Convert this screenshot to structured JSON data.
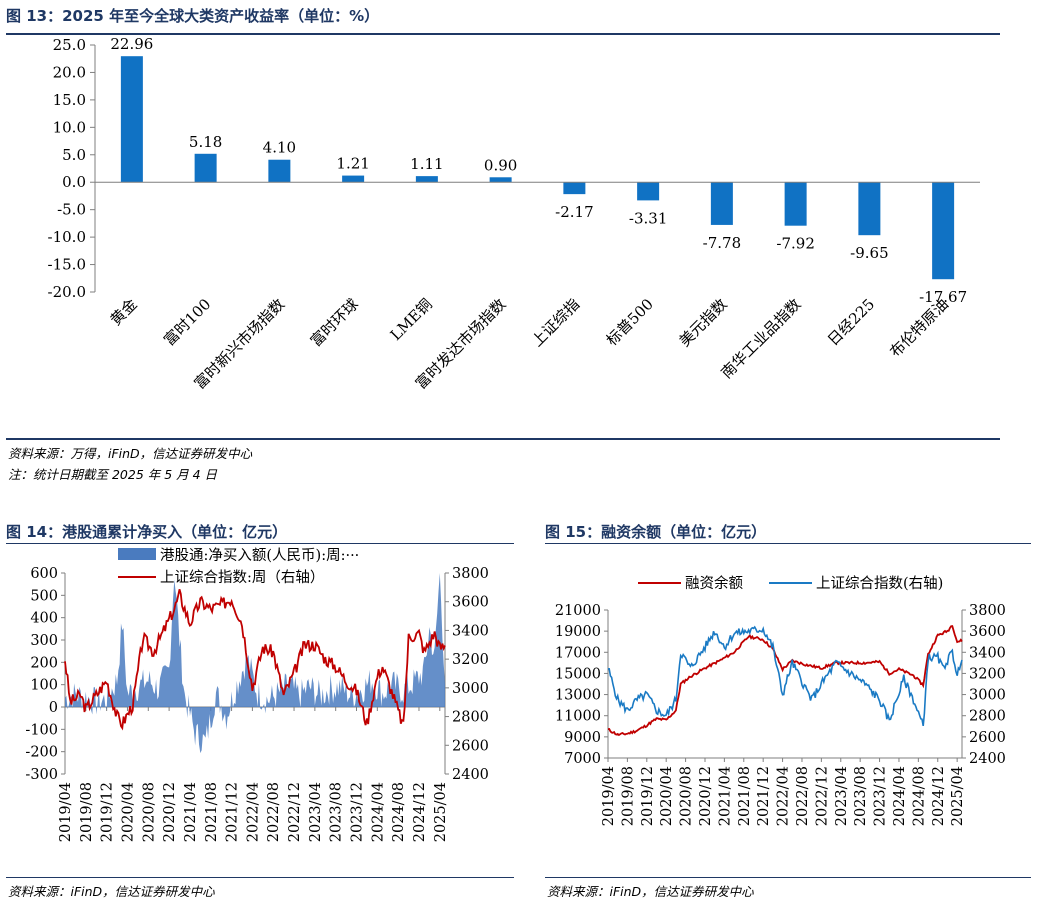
{
  "figures": [
    {
      "title": "图 13：2025 年至今全球大类资产收益率（单位：%）",
      "source": "资料来源：万得，iFinD，信达证券研发中心",
      "note": "注：统计日期截至 2025 年 5 月 4 日"
    },
    {
      "title": "图 14：港股通累计净买入（单位：亿元）",
      "source": "资料来源：iFinD，信达证券研发中心"
    },
    {
      "title": "图 15：融资余额（单位：亿元）",
      "source": "资料来源：iFinD，信达证券研发中心"
    }
  ],
  "chart_data": [
    {
      "type": "bar",
      "categories": [
        "黄金",
        "富时100",
        "富时新兴市场指数",
        "富时环球",
        "LME铜",
        "富时发达市场指数",
        "上证综指",
        "标普500",
        "美元指数",
        "南华工业品指数",
        "日经225",
        "布伦特原油"
      ],
      "values": [
        22.96,
        5.18,
        4.1,
        1.21,
        1.11,
        0.9,
        -2.17,
        -3.31,
        -7.78,
        -7.92,
        -9.65,
        -17.67
      ],
      "value_labels": [
        "22.96",
        "5.18",
        "4.10",
        "1.21",
        "1.11",
        "0.90",
        "-2.17",
        "-3.31",
        "-7.78",
        "-7.92",
        "-9.65",
        "-17.67"
      ],
      "ylim": [
        -20,
        25
      ],
      "yticks": [
        "-20.0",
        "-15.0",
        "-10.0",
        "-5.0",
        "0.0",
        "5.0",
        "10.0",
        "15.0",
        "20.0",
        "25.0"
      ],
      "color": "#1072c4",
      "grid": false
    },
    {
      "type": "area",
      "legend": [
        "港股通:净买入额(人民币):周:···",
        "上证综合指数:周（右轴）"
      ],
      "legend_placement": "top",
      "xticks": [
        "2019/04",
        "2019/08",
        "2019/12",
        "2020/04",
        "2020/08",
        "2020/12",
        "2021/04",
        "2021/08",
        "2021/12",
        "2022/04",
        "2022/08",
        "2022/12",
        "2023/04",
        "2023/08",
        "2023/12",
        "2024/04",
        "2024/08",
        "2024/12",
        "2025/04"
      ],
      "x_range": [
        "2019/04",
        "2025/05"
      ],
      "ylim_left": [
        -300,
        600
      ],
      "yticks_left": [
        "-300",
        "-200",
        "-100",
        "0",
        "100",
        "200",
        "300",
        "400",
        "500",
        "600"
      ],
      "ylim_right": [
        2400,
        3800
      ],
      "yticks_right": [
        "2400",
        "2600",
        "2800",
        "3000",
        "3200",
        "3400",
        "3600",
        "3800"
      ],
      "series": [
        {
          "name": "港股通:净买入额(人民币):周:···",
          "axis": "left",
          "color": "#4a7bbf",
          "anchors": [
            [
              "2019/04",
              40
            ],
            [
              "2019/06",
              55
            ],
            [
              "2019/08",
              45
            ],
            [
              "2019/10",
              20
            ],
            [
              "2019/12",
              35
            ],
            [
              "2020/02",
              120
            ],
            [
              "2020/03",
              380
            ],
            [
              "2020/04",
              60
            ],
            [
              "2020/06",
              90
            ],
            [
              "2020/08",
              120
            ],
            [
              "2020/10",
              80
            ],
            [
              "2020/12",
              170
            ],
            [
              "2021/01",
              610
            ],
            [
              "2021/02",
              300
            ],
            [
              "2021/03",
              50
            ],
            [
              "2021/05",
              -120
            ],
            [
              "2021/07",
              -160
            ],
            [
              "2021/09",
              60
            ],
            [
              "2021/11",
              -40
            ],
            [
              "2022/01",
              100
            ],
            [
              "2022/03",
              220
            ],
            [
              "2022/05",
              60
            ],
            [
              "2022/07",
              30
            ],
            [
              "2022/09",
              60
            ],
            [
              "2022/11",
              100
            ],
            [
              "2023/01",
              50
            ],
            [
              "2023/03",
              90
            ],
            [
              "2023/05",
              50
            ],
            [
              "2023/07",
              80
            ],
            [
              "2023/09",
              90
            ],
            [
              "2023/11",
              50
            ],
            [
              "2024/01",
              80
            ],
            [
              "2024/03",
              120
            ],
            [
              "2024/05",
              60
            ],
            [
              "2024/07",
              100
            ],
            [
              "2024/09",
              70
            ],
            [
              "2024/11",
              110
            ],
            [
              "2025/01",
              160
            ],
            [
              "2025/02",
              350
            ],
            [
              "2025/03",
              220
            ],
            [
              "2025/04",
              610
            ],
            [
              "2025/05",
              120
            ]
          ]
        },
        {
          "name": "上证综合指数:周（右轴）",
          "axis": "right",
          "color": "#c00000",
          "anchors": [
            [
              "2019/04",
              3200
            ],
            [
              "2019/05",
              2900
            ],
            [
              "2019/07",
              2950
            ],
            [
              "2019/08",
              2850
            ],
            [
              "2019/10",
              2950
            ],
            [
              "2019/12",
              3050
            ],
            [
              "2020/02",
              2800
            ],
            [
              "2020/03",
              2750
            ],
            [
              "2020/05",
              2880
            ],
            [
              "2020/07",
              3350
            ],
            [
              "2020/09",
              3250
            ],
            [
              "2020/11",
              3400
            ],
            [
              "2021/01",
              3550
            ],
            [
              "2021/02",
              3650
            ],
            [
              "2021/04",
              3450
            ],
            [
              "2021/06",
              3600
            ],
            [
              "2021/08",
              3550
            ],
            [
              "2021/10",
              3580
            ],
            [
              "2021/12",
              3620
            ],
            [
              "2022/02",
              3450
            ],
            [
              "2022/04",
              3000
            ],
            [
              "2022/06",
              3280
            ],
            [
              "2022/08",
              3250
            ],
            [
              "2022/10",
              2950
            ],
            [
              "2022/12",
              3100
            ],
            [
              "2023/02",
              3300
            ],
            [
              "2023/04",
              3300
            ],
            [
              "2023/06",
              3200
            ],
            [
              "2023/08",
              3150
            ],
            [
              "2023/10",
              3050
            ],
            [
              "2023/12",
              2980
            ],
            [
              "2024/02",
              2750
            ],
            [
              "2024/04",
              3080
            ],
            [
              "2024/05",
              3150
            ],
            [
              "2024/07",
              2950
            ],
            [
              "2024/09",
              2730
            ],
            [
              "2024/10",
              3350
            ],
            [
              "2024/12",
              3380
            ],
            [
              "2025/01",
              3250
            ],
            [
              "2025/03",
              3380
            ],
            [
              "2025/04",
              3280
            ],
            [
              "2025/05",
              3290
            ]
          ]
        }
      ]
    },
    {
      "type": "line",
      "legend": [
        "融资余额",
        "上证综合指数(右轴)"
      ],
      "legend_placement": "top",
      "xticks": [
        "2019/04",
        "2019/08",
        "2019/12",
        "2020/04",
        "2020/08",
        "2020/12",
        "2021/04",
        "2021/08",
        "2021/12",
        "2022/04",
        "2022/08",
        "2022/12",
        "2023/04",
        "2023/08",
        "2023/12",
        "2024/04",
        "2024/08",
        "2024/12",
        "2025/04"
      ],
      "x_range": [
        "2019/04",
        "2025/05"
      ],
      "ylim_left": [
        7000,
        21000
      ],
      "yticks_left": [
        "7000",
        "9000",
        "11000",
        "13000",
        "15000",
        "17000",
        "19000",
        "21000"
      ],
      "ylim_right": [
        2400,
        3800
      ],
      "yticks_right": [
        "2400",
        "2600",
        "2800",
        "3000",
        "3200",
        "3400",
        "3600",
        "3800"
      ],
      "series": [
        {
          "name": "融资余额",
          "axis": "left",
          "color": "#c00000",
          "anchors": [
            [
              "2019/04",
              9700
            ],
            [
              "2019/06",
              9200
            ],
            [
              "2019/08",
              9300
            ],
            [
              "2019/10",
              9600
            ],
            [
              "2019/12",
              10100
            ],
            [
              "2020/02",
              10700
            ],
            [
              "2020/04",
              10600
            ],
            [
              "2020/06",
              11500
            ],
            [
              "2020/07",
              14000
            ],
            [
              "2020/09",
              14700
            ],
            [
              "2020/12",
              15500
            ],
            [
              "2021/03",
              16200
            ],
            [
              "2021/06",
              17000
            ],
            [
              "2021/09",
              18500
            ],
            [
              "2021/12",
              18200
            ],
            [
              "2022/02",
              17300
            ],
            [
              "2022/04",
              15400
            ],
            [
              "2022/06",
              16200
            ],
            [
              "2022/09",
              15800
            ],
            [
              "2022/12",
              15500
            ],
            [
              "2023/03",
              16000
            ],
            [
              "2023/06",
              16000
            ],
            [
              "2023/09",
              16000
            ],
            [
              "2023/12",
              16100
            ],
            [
              "2024/02",
              15000
            ],
            [
              "2024/04",
              15400
            ],
            [
              "2024/07",
              14800
            ],
            [
              "2024/09",
              13900
            ],
            [
              "2024/10",
              16800
            ],
            [
              "2024/12",
              18600
            ],
            [
              "2025/02",
              19000
            ],
            [
              "2025/03",
              19600
            ],
            [
              "2025/04",
              18000
            ],
            [
              "2025/05",
              18100
            ]
          ]
        },
        {
          "name": "上证综合指数(右轴)",
          "axis": "right",
          "color": "#1a7ac4",
          "anchors": [
            [
              "2019/04",
              3250
            ],
            [
              "2019/06",
              2950
            ],
            [
              "2019/08",
              2850
            ],
            [
              "2019/10",
              2950
            ],
            [
              "2019/12",
              3000
            ],
            [
              "2020/02",
              2850
            ],
            [
              "2020/04",
              2800
            ],
            [
              "2020/06",
              2950
            ],
            [
              "2020/07",
              3400
            ],
            [
              "2020/09",
              3250
            ],
            [
              "2020/12",
              3450
            ],
            [
              "2021/02",
              3600
            ],
            [
              "2021/04",
              3450
            ],
            [
              "2021/06",
              3580
            ],
            [
              "2021/09",
              3600
            ],
            [
              "2021/12",
              3620
            ],
            [
              "2022/02",
              3450
            ],
            [
              "2022/04",
              3000
            ],
            [
              "2022/06",
              3300
            ],
            [
              "2022/10",
              2950
            ],
            [
              "2022/12",
              3100
            ],
            [
              "2023/03",
              3300
            ],
            [
              "2023/06",
              3200
            ],
            [
              "2023/09",
              3100
            ],
            [
              "2023/12",
              2950
            ],
            [
              "2024/02",
              2750
            ],
            [
              "2024/05",
              3150
            ],
            [
              "2024/07",
              2950
            ],
            [
              "2024/09",
              2700
            ],
            [
              "2024/10",
              3350
            ],
            [
              "2024/12",
              3350
            ],
            [
              "2025/01",
              3250
            ],
            [
              "2025/03",
              3400
            ],
            [
              "2025/04",
              3200
            ],
            [
              "2025/05",
              3290
            ]
          ]
        }
      ]
    }
  ]
}
